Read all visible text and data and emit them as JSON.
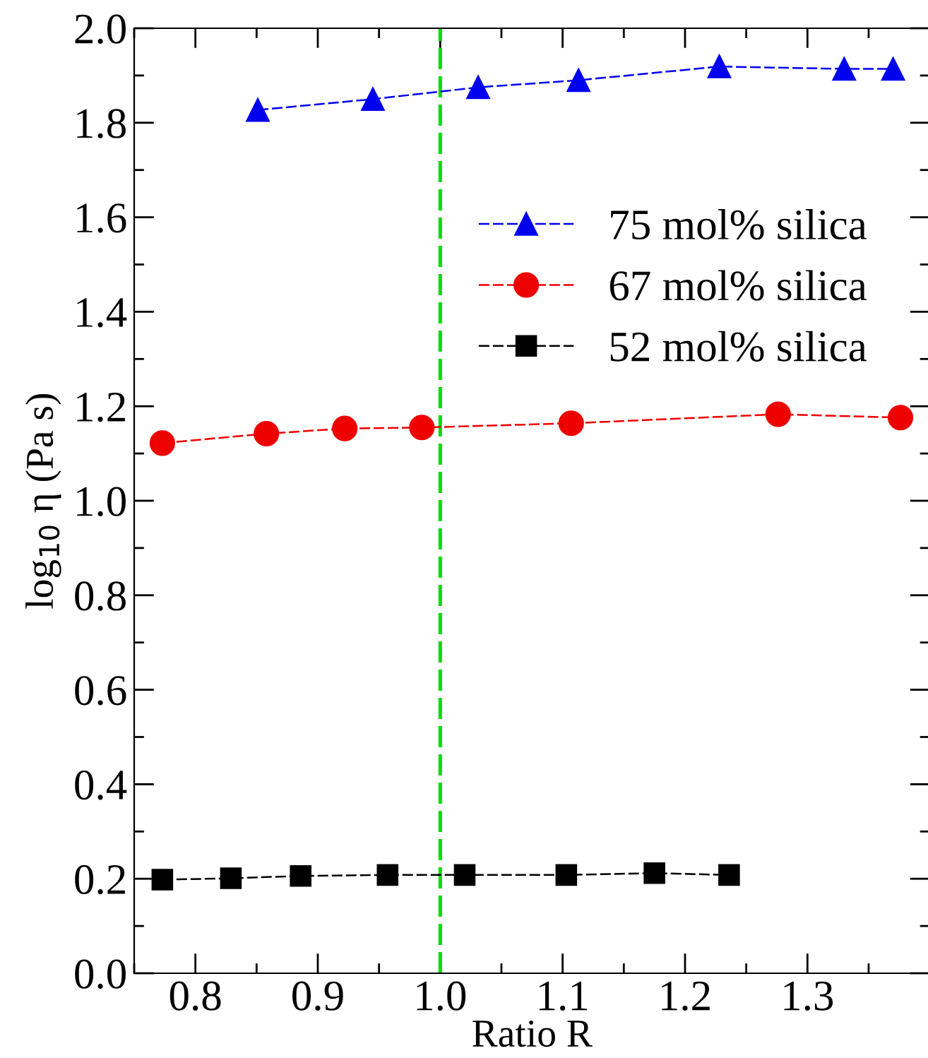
{
  "chart_data": {
    "type": "line",
    "xlabel": "Ratio R",
    "ylabel": "log$_{10}$ η (Pa s)",
    "xlim": [
      0.75,
      1.4
    ],
    "xticks": [
      0.8,
      0.9,
      {
        "value": 1,
        "label": "1.0"
      },
      1.1,
      1.2,
      1.3,
      {
        "value": 0.75,
        "label": null
      },
      {
        "value": 0.85,
        "label": null
      },
      {
        "value": 0.95,
        "label": null
      },
      {
        "value": 1.05,
        "label": null
      },
      {
        "value": 1.15,
        "label": null
      },
      {
        "value": 1.25,
        "label": null
      },
      {
        "value": 1.35,
        "label": null
      }
    ],
    "ylim": [
      0,
      2.0
    ],
    "yticks": [
      {
        "value": 0,
        "label": "0.0"
      },
      0.2,
      0.4,
      0.6,
      0.8,
      {
        "value": 1,
        "label": "1.0"
      },
      1.2,
      1.4,
      1.6,
      1.8,
      {
        "value": 2,
        "label": "2.0"
      },
      {
        "value": 0.1,
        "label": null
      },
      {
        "value": 0.3,
        "label": null
      },
      {
        "value": 0.5,
        "label": null
      },
      {
        "value": 0.7,
        "label": null
      },
      {
        "value": 0.9,
        "label": null
      },
      {
        "value": 1.1,
        "label": null
      },
      {
        "value": 1.3,
        "label": null
      },
      {
        "value": 1.5,
        "label": null
      },
      {
        "value": 1.7,
        "label": null
      },
      {
        "value": 1.9,
        "label": null
      }
    ],
    "grid": false,
    "legend": "top right",
    "line_style": "dashed",
    "ref_lines": [
      {
        "axis": "x",
        "value": 1.0,
        "color": "#00dd00",
        "line_style": "dashed"
      }
    ],
    "series": [
      {
        "name": "75 mol% silica",
        "color": "#0000ee",
        "marker": "triangle",
        "x": [
          0.851,
          0.945,
          1.031,
          1.113,
          1.228,
          1.33,
          1.37
        ],
        "values": [
          1.827,
          1.85,
          1.875,
          1.89,
          1.919,
          1.914,
          1.914
        ]
      },
      {
        "name": "67 mol% silica",
        "color": "#ee0000",
        "marker": "circle",
        "x": [
          0.773,
          0.858,
          0.922,
          0.985,
          1.107,
          1.276,
          1.376
        ],
        "values": [
          1.122,
          1.142,
          1.153,
          1.155,
          1.164,
          1.183,
          1.176
        ]
      },
      {
        "name": "52 mol% silica",
        "color": "#000000",
        "marker": "square",
        "x": [
          0.773,
          0.829,
          0.886,
          0.957,
          1.02,
          1.103,
          1.175,
          1.236
        ],
        "values": [
          0.198,
          0.201,
          0.206,
          0.208,
          0.208,
          0.208,
          0.212,
          0.208
        ]
      }
    ]
  }
}
